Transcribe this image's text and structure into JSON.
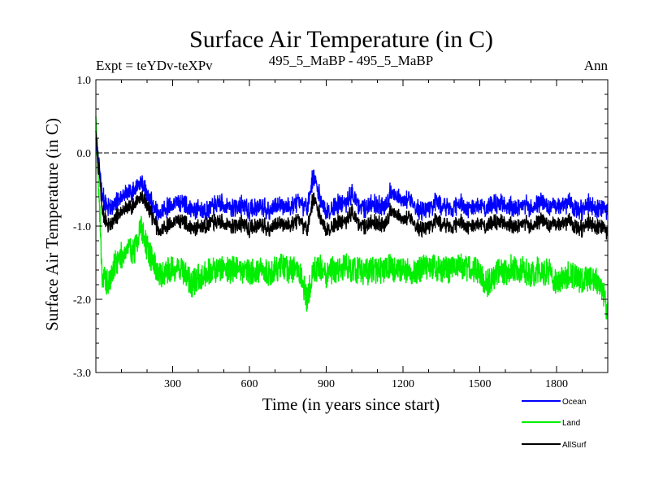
{
  "chart_data": {
    "type": "line",
    "title": "Surface Air Temperature (in C)",
    "subtitle_left": "Expt = teYDv-teXPv",
    "subtitle_center": "495_5_MaBP - 495_5_MaBP",
    "subtitle_right": "Ann",
    "xlabel": "Time (in years since start)",
    "ylabel": "Surface Air Temperature (in C)",
    "xlim": [
      0,
      2000
    ],
    "ylim": [
      -3.0,
      1.0
    ],
    "x_ticks": [
      300,
      600,
      900,
      1200,
      1500,
      1800
    ],
    "x_tick_labels": [
      "300",
      "600",
      "900",
      "1200",
      "1500",
      "1800"
    ],
    "y_ticks": [
      1.0,
      0.0,
      -1.0,
      -2.0,
      -3.0
    ],
    "y_tick_labels": [
      "1.0",
      "0.0",
      "-1.0",
      "-2.0",
      "-3.0"
    ],
    "reference_line": 0.0,
    "x_sample_step": 25,
    "series": [
      {
        "name": "Ocean",
        "color": "#0000ff",
        "values": [
          0.2,
          -0.6,
          -0.75,
          -0.7,
          -0.6,
          -0.55,
          -0.5,
          -0.4,
          -0.55,
          -0.75,
          -0.85,
          -0.75,
          -0.7,
          -0.65,
          -0.7,
          -0.8,
          -0.75,
          -0.8,
          -0.75,
          -0.7,
          -0.7,
          -0.75,
          -0.75,
          -0.7,
          -0.8,
          -0.75,
          -0.7,
          -0.8,
          -0.75,
          -0.7,
          -0.75,
          -0.7,
          -0.7,
          -0.75,
          -0.3,
          -0.6,
          -0.8,
          -0.75,
          -0.7,
          -0.7,
          -0.55,
          -0.7,
          -0.75,
          -0.7,
          -0.7,
          -0.75,
          -0.55,
          -0.6,
          -0.7,
          -0.6,
          -0.75,
          -0.8,
          -0.75,
          -0.7,
          -0.7,
          -0.75,
          -0.75,
          -0.7,
          -0.75,
          -0.75,
          -0.7,
          -0.75,
          -0.7,
          -0.7,
          -0.7,
          -0.75,
          -0.75,
          -0.7,
          -0.75,
          -0.7,
          -0.65,
          -0.75,
          -0.7,
          -0.7,
          -0.7,
          -0.75,
          -0.8,
          -0.7,
          -0.75,
          -0.75,
          -0.8
        ]
      },
      {
        "name": "Land",
        "color": "#00ee00",
        "values": [
          0.5,
          -1.7,
          -1.8,
          -1.5,
          -1.4,
          -1.3,
          -1.35,
          -1.0,
          -1.3,
          -1.5,
          -1.7,
          -1.6,
          -1.6,
          -1.55,
          -1.65,
          -1.8,
          -1.7,
          -1.65,
          -1.6,
          -1.6,
          -1.55,
          -1.6,
          -1.55,
          -1.6,
          -1.6,
          -1.65,
          -1.6,
          -1.65,
          -1.6,
          -1.55,
          -1.6,
          -1.6,
          -1.65,
          -2.0,
          -1.6,
          -1.55,
          -1.7,
          -1.6,
          -1.6,
          -1.55,
          -1.6,
          -1.6,
          -1.65,
          -1.6,
          -1.6,
          -1.6,
          -1.55,
          -1.6,
          -1.6,
          -1.6,
          -1.65,
          -1.55,
          -1.6,
          -1.55,
          -1.6,
          -1.6,
          -1.6,
          -1.55,
          -1.6,
          -1.6,
          -1.65,
          -1.8,
          -1.7,
          -1.6,
          -1.65,
          -1.55,
          -1.6,
          -1.6,
          -1.65,
          -1.6,
          -1.65,
          -1.6,
          -1.8,
          -1.7,
          -1.65,
          -1.7,
          -1.75,
          -1.7,
          -1.75,
          -1.8,
          -2.2
        ]
      },
      {
        "name": "AllSurf",
        "color": "#000000",
        "values": [
          0.3,
          -0.8,
          -1.0,
          -0.9,
          -0.8,
          -0.75,
          -0.7,
          -0.6,
          -0.7,
          -0.9,
          -1.1,
          -1.0,
          -0.95,
          -0.9,
          -0.95,
          -1.05,
          -1.0,
          -1.0,
          -0.95,
          -0.95,
          -0.95,
          -1.0,
          -1.0,
          -0.95,
          -1.05,
          -1.0,
          -0.95,
          -1.05,
          -1.0,
          -0.95,
          -1.0,
          -0.95,
          -0.95,
          -1.05,
          -0.6,
          -0.85,
          -1.05,
          -1.0,
          -0.95,
          -0.95,
          -0.8,
          -0.95,
          -1.0,
          -0.95,
          -0.95,
          -1.0,
          -0.8,
          -0.85,
          -0.95,
          -0.85,
          -1.0,
          -1.05,
          -1.0,
          -0.95,
          -0.95,
          -1.0,
          -1.0,
          -0.95,
          -1.0,
          -1.0,
          -0.95,
          -1.0,
          -0.95,
          -0.95,
          -0.95,
          -1.0,
          -1.0,
          -0.95,
          -1.0,
          -0.95,
          -0.9,
          -1.0,
          -0.95,
          -0.95,
          -0.95,
          -1.0,
          -1.05,
          -0.95,
          -1.0,
          -1.0,
          -1.1
        ]
      }
    ],
    "noise_amplitude": {
      "Ocean": 0.22,
      "Land": 0.38,
      "AllSurf": 0.18
    }
  }
}
